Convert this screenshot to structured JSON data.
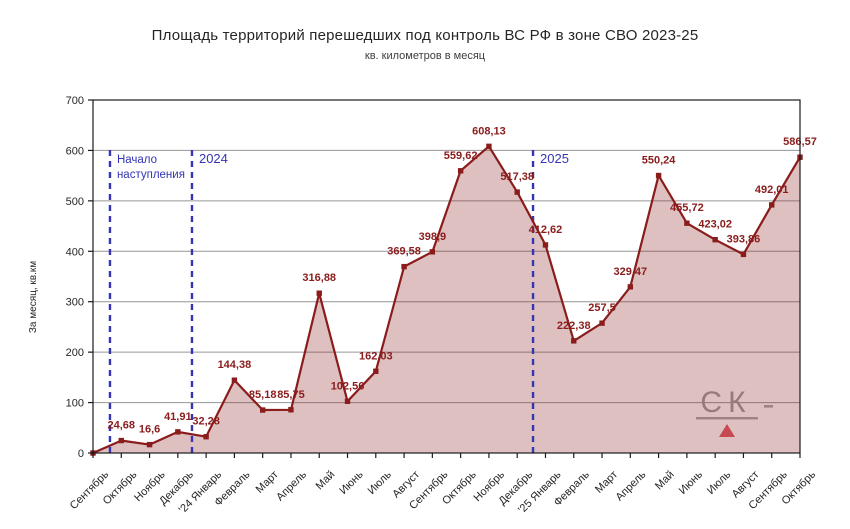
{
  "title": "Площадь территорий перешедших под контроль ВС РФ в зоне СВО 2023-25",
  "subtitle": "кв. километров в месяц",
  "watermark": {
    "text": "СК"
  },
  "colors": {
    "line": "#8A1C1C",
    "fill": "rgba(138,28,28,0.28)",
    "point_label": "#8A1C1C",
    "annotation": "#3434B4",
    "grid": "#969696",
    "spine": "#1a1a1a",
    "tick_label": "#262626",
    "watermark_text": "#9f9f9f",
    "watermark_triangle": "#E05A66"
  },
  "chart_data": {
    "type": "area",
    "title": "Площадь территорий перешедших под контроль ВС РФ в зоне СВО 2023-25",
    "subtitle": "кв. километров в месяц",
    "ylabel": "За месяц, кв.км",
    "ylim": [
      0,
      700
    ],
    "ytick_step": 100,
    "grid": true,
    "legend": "none",
    "categories": [
      "Сентябрь",
      "Октябрь",
      "Ноябрь",
      "Декабрь",
      "'24 Январь",
      "Февраль",
      "Март",
      "Апрель",
      "Май",
      "Июнь",
      "Июль",
      "Август",
      "Сентябрь",
      "Октябрь",
      "Ноябрь",
      "Декабрь",
      "'25 Январь",
      "Февраль",
      "Март",
      "Апрель",
      "Май",
      "Июнь",
      "Июль",
      "Август",
      "Сентябрь",
      "Октябрь"
    ],
    "values": [
      0,
      24.68,
      16.6,
      41.91,
      32.28,
      144.38,
      85.18,
      85.75,
      316.88,
      102.56,
      162.03,
      369.58,
      398.9,
      559.62,
      608.13,
      517.38,
      412.62,
      222.38,
      257.5,
      329.47,
      550.24,
      455.72,
      423.02,
      393.86,
      492.01,
      586.57
    ],
    "point_labels": [
      "",
      "24,68",
      "16,6",
      "41,91",
      "32,28",
      "144,38",
      "85,18",
      "85,75",
      "316,88",
      "102,56",
      "162,03",
      "369,58",
      "398,9",
      "559,62",
      "608,13",
      "517,38",
      "412,62",
      "222,38",
      "257,5",
      "329,47",
      "550,24",
      "455,72",
      "423,02",
      "393,86",
      "492,01",
      "586,57"
    ],
    "annotations": [
      {
        "label": "Начало\nнаступления",
        "x_index": 0.6,
        "font_size": 11.5
      },
      {
        "label": "2024",
        "x_index": 3.5,
        "font_size": 13
      },
      {
        "label": "2025",
        "x_index": 15.56,
        "font_size": 13
      }
    ]
  }
}
